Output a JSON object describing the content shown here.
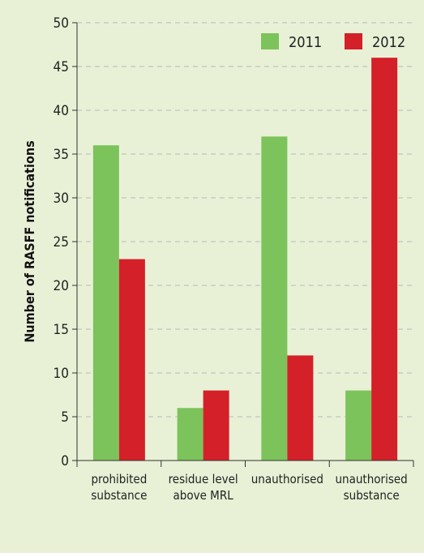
{
  "chart_data": {
    "type": "bar",
    "title": "",
    "xlabel": "",
    "ylabel": "Number of RASFF notifications",
    "ylim": [
      0,
      50
    ],
    "yticks": [
      0,
      5,
      10,
      15,
      20,
      25,
      30,
      35,
      40,
      45,
      50
    ],
    "grid": true,
    "legend_position": "top-right",
    "categories": [
      [
        "prohibited",
        "substance"
      ],
      [
        "residue level",
        "above MRL"
      ],
      [
        "unauthorised"
      ],
      [
        "unauthorised",
        "substance"
      ]
    ],
    "series": [
      {
        "name": "2011",
        "color": "#7dc35b",
        "values": [
          36,
          6,
          37,
          8
        ]
      },
      {
        "name": "2012",
        "color": "#d42028",
        "values": [
          23,
          8,
          12,
          46
        ]
      }
    ]
  }
}
